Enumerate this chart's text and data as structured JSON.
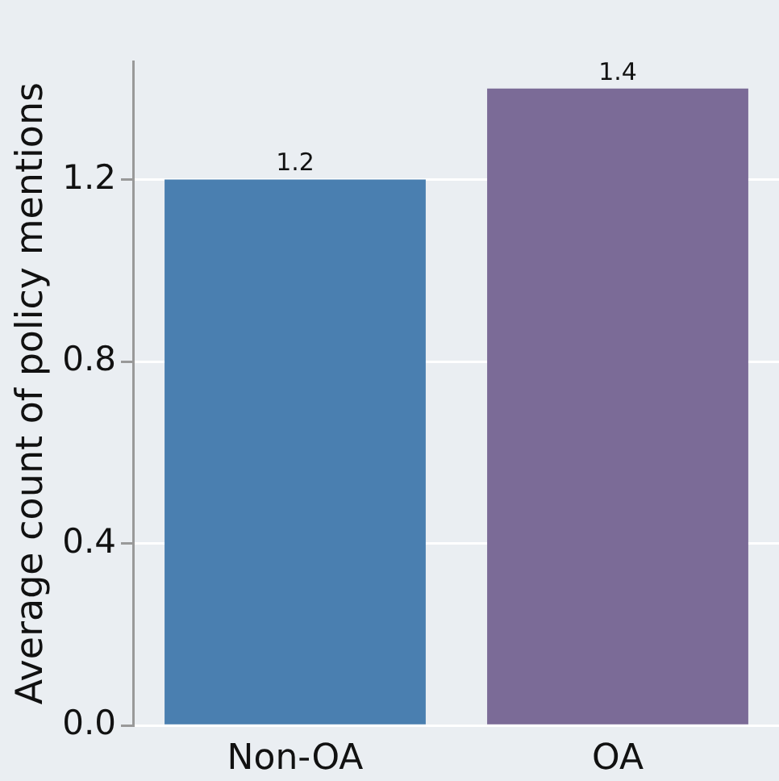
{
  "chart_data": {
    "type": "bar",
    "ylabel": "Average count of policy mentions",
    "categories": [
      "Non-OA",
      "OA"
    ],
    "values": [
      1.2,
      1.4
    ],
    "colors": [
      "#4a7fb0",
      "#7b6b97"
    ],
    "ylim": [
      0,
      1.46
    ],
    "yticks": [
      {
        "value": 0,
        "label": "0.0"
      },
      0.4,
      0.8,
      1.2
    ],
    "grid": "y",
    "legend": false,
    "data_labels": true
  }
}
